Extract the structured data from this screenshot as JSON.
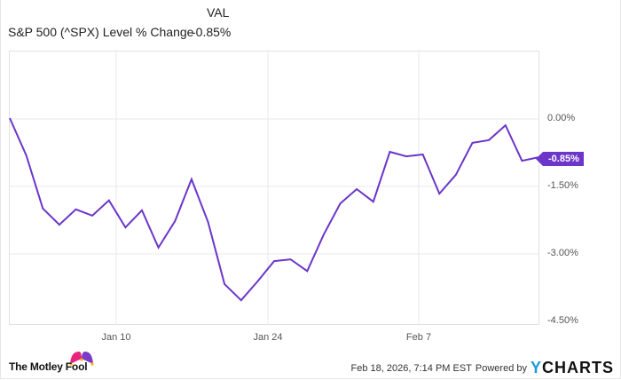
{
  "legend": {
    "column_header": "VAL",
    "series_label": "S&P 500 (^SPX) Level % Change",
    "series_value": "-0.85%"
  },
  "colors": {
    "line": "#6b36c9",
    "badge_bg": "#6b36c9",
    "grid": "#e8e8e8",
    "ycharts_accent": "#1a9bd7"
  },
  "axis": {
    "y_ticks": [
      "0.00%",
      "-1.50%",
      "-3.00%",
      "-4.50%"
    ],
    "x_ticks": [
      "Jan 10",
      "Jan 24",
      "Feb 7"
    ]
  },
  "badge": {
    "value": "-0.85%"
  },
  "footer": {
    "brand": "The Motley Fool",
    "timestamp": "Feb 18, 2026, 7:14 PM EST",
    "powered_by": "Powered by",
    "provider_y": "Y",
    "provider_rest": "CHARTS"
  },
  "chart_data": {
    "type": "line",
    "title": "S&P 500 (^SPX) Level % Change",
    "xlabel": "",
    "ylabel": "",
    "ylim": [
      -4.5,
      0.5
    ],
    "y_ticks": [
      0.0,
      -1.5,
      -3.0,
      -4.5
    ],
    "x_tick_labels": [
      "Jan 10",
      "Jan 24",
      "Feb 7"
    ],
    "grid": true,
    "legend_position": "top-left",
    "series": [
      {
        "name": "S&P 500 (^SPX) Level % Change",
        "last_value": -0.85,
        "x": [
          "Dec 31",
          "Jan 2",
          "Jan 5",
          "Jan 6",
          "Jan 7",
          "Jan 8",
          "Jan 9",
          "Jan 12",
          "Jan 13",
          "Jan 14",
          "Jan 15",
          "Jan 16",
          "Jan 20",
          "Jan 21",
          "Jan 22",
          "Jan 23",
          "Jan 26",
          "Jan 27",
          "Jan 28",
          "Jan 29",
          "Jan 30",
          "Feb 2",
          "Feb 3",
          "Feb 4",
          "Feb 5",
          "Feb 6",
          "Feb 9",
          "Feb 10",
          "Feb 11",
          "Feb 12",
          "Feb 13",
          "Feb 17",
          "Feb 18"
        ],
        "values": [
          0.02,
          -0.81,
          -1.99,
          -2.35,
          -2.01,
          -2.15,
          -1.81,
          -2.41,
          -2.03,
          -2.86,
          -2.27,
          -1.34,
          -2.29,
          -3.67,
          -4.03,
          -3.61,
          -3.16,
          -3.12,
          -3.38,
          -2.57,
          -1.88,
          -1.56,
          -1.84,
          -0.73,
          -0.83,
          -0.79,
          -1.66,
          -1.24,
          -0.53,
          -0.47,
          -0.14,
          -0.93,
          -0.85
        ]
      }
    ]
  }
}
